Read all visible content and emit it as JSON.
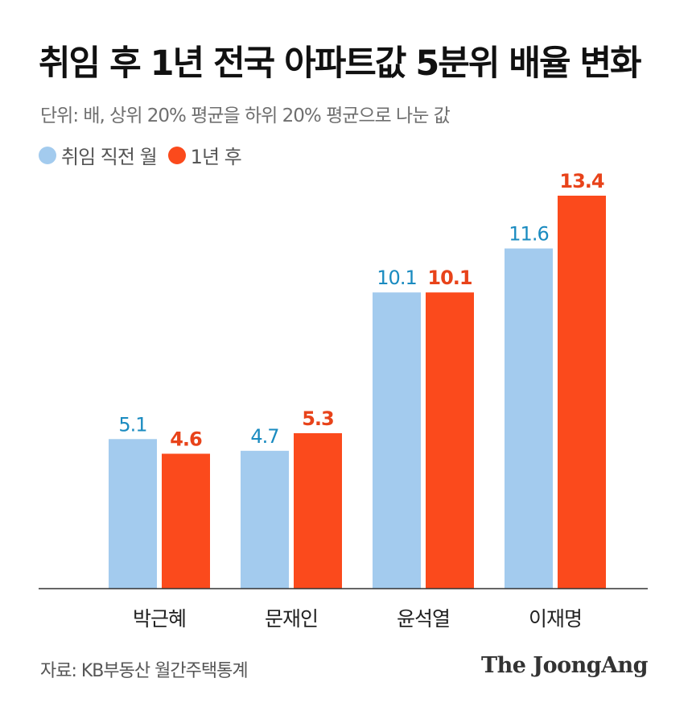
{
  "title": "취임 후 1년 전국 아파트값 5분위 배율 변화",
  "subtitle": "단위: 배, 상위 20% 평균을 하위 20% 평균으로 나눈 값",
  "source": "자료: KB부동산 월간주택통계",
  "logo": "The JoongAng",
  "colors": {
    "before": "#a3cbee",
    "after": "#fb4a1c",
    "before_label": "#1a8bc0",
    "after_label": "#e8431a",
    "axis": "#333333"
  },
  "chart_data": {
    "type": "bar",
    "title": "취임 후 1년 전국 아파트값 5분위 배율 변화",
    "subtitle": "단위: 배, 상위 20% 평균을 하위 20% 평균으로 나눈 값",
    "categories": [
      "박근혜",
      "문재인",
      "윤석열",
      "이재명"
    ],
    "series": [
      {
        "name": "취임 직전 월",
        "values": [
          5.1,
          4.7,
          10.1,
          11.6
        ]
      },
      {
        "name": "1년 후",
        "values": [
          4.6,
          5.3,
          10.1,
          13.4
        ]
      }
    ],
    "ylim": [
      0,
      13.4
    ],
    "grid": false,
    "legend_position": "top-left"
  }
}
